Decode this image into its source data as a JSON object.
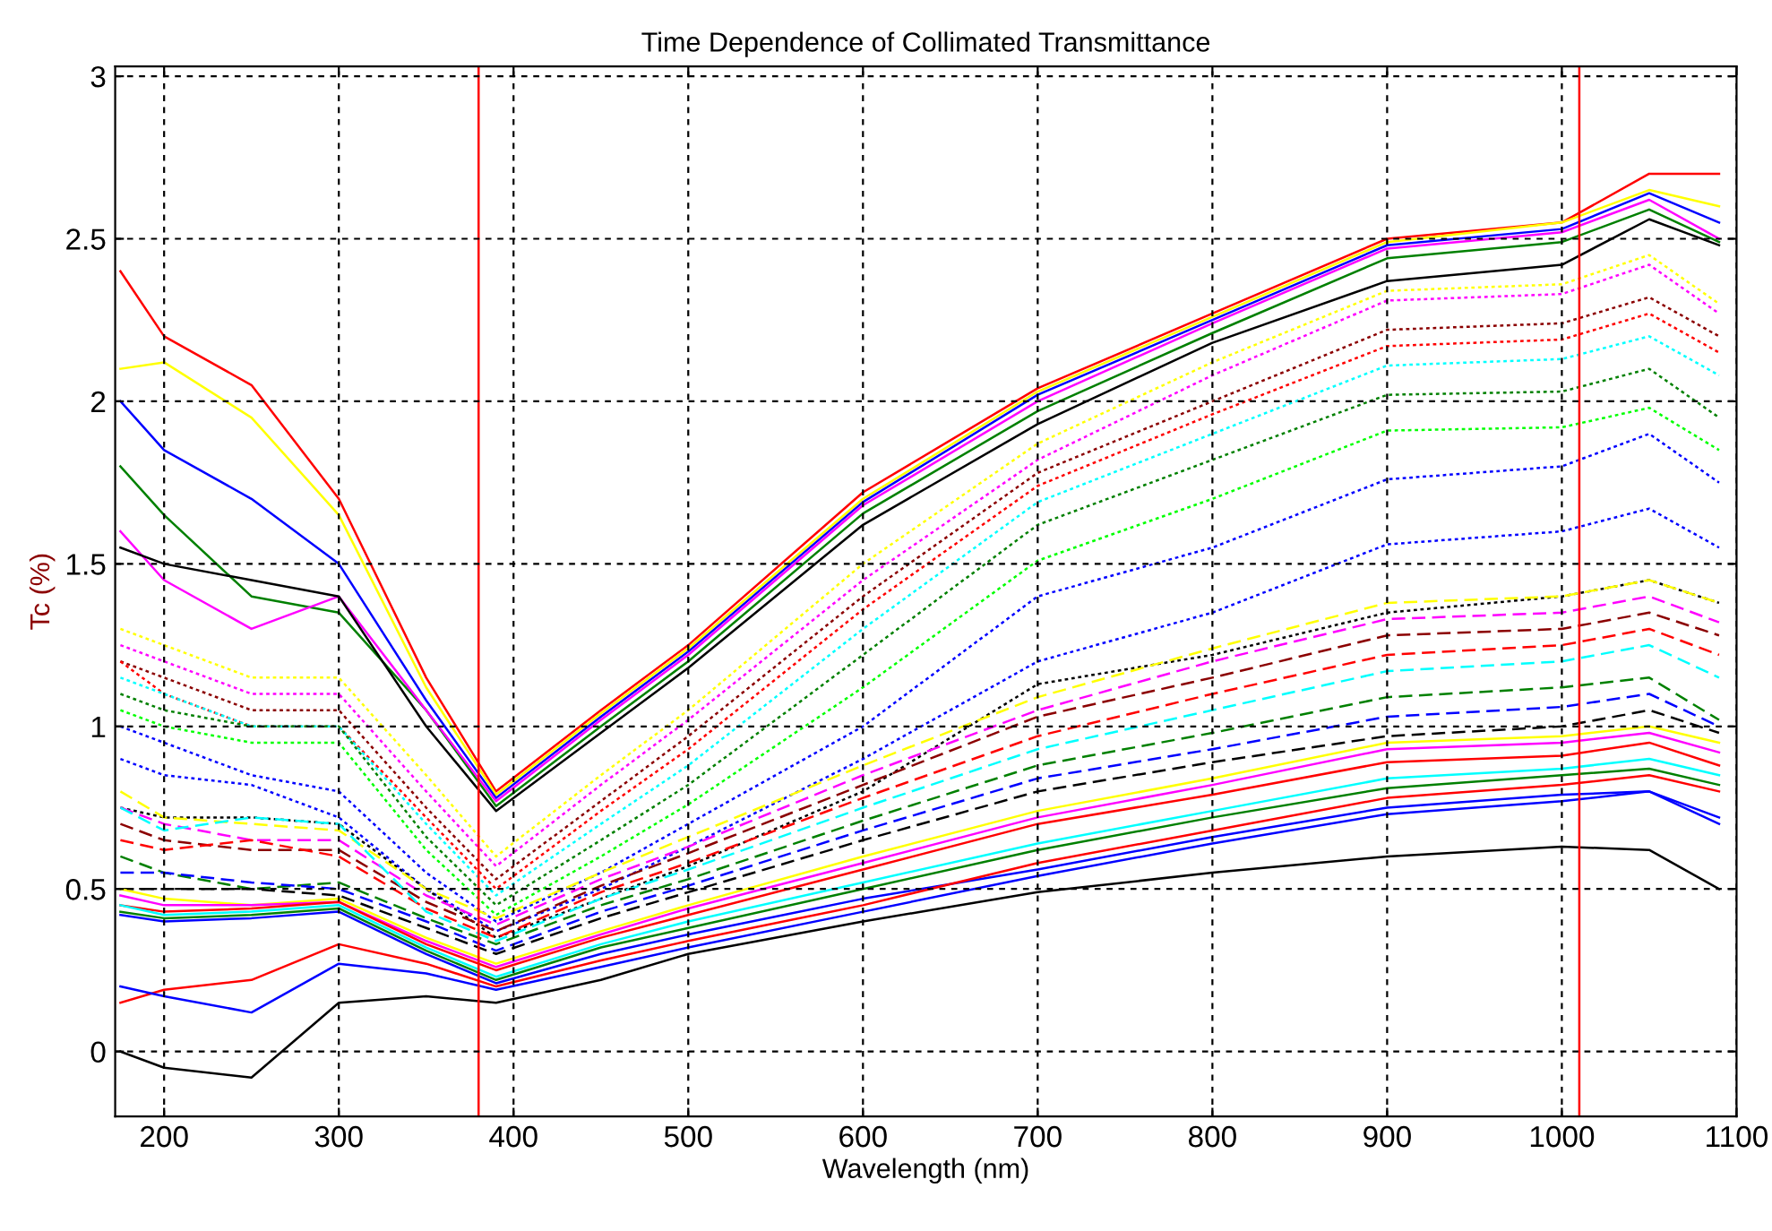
{
  "chart_data": {
    "type": "line",
    "title": "Time Dependence of Collimated Transmittance",
    "xlabel": "Wavelength (nm)",
    "ylabel": "Tc (%)",
    "x": [
      175,
      200,
      250,
      300,
      350,
      390,
      450,
      500,
      600,
      700,
      800,
      900,
      1000,
      1050,
      1090
    ],
    "xlim": [
      172,
      1100
    ],
    "ylim": [
      -0.2,
      3.03
    ],
    "xticks": [
      200,
      300,
      400,
      500,
      600,
      700,
      800,
      900,
      1000,
      1100
    ],
    "yticks": [
      0,
      0.5,
      1,
      1.5,
      2,
      2.5,
      3
    ],
    "grid": true,
    "legend": false,
    "ref_lines": [
      {
        "axis": "x",
        "value": 380,
        "color": "#ff0000"
      },
      {
        "axis": "x",
        "value": 1010,
        "color": "#ff0000"
      }
    ],
    "series": [
      {
        "color": "#ff0000",
        "line_style": "solid",
        "values": [
          2.4,
          2.2,
          2.05,
          1.7,
          1.15,
          0.8,
          1.05,
          1.25,
          1.72,
          2.04,
          2.27,
          2.5,
          2.55,
          2.7,
          2.7
        ]
      },
      {
        "color": "#ffff00",
        "line_style": "solid",
        "values": [
          2.1,
          2.12,
          1.95,
          1.65,
          1.12,
          0.79,
          1.04,
          1.24,
          1.7,
          2.03,
          2.26,
          2.49,
          2.55,
          2.65,
          2.6
        ]
      },
      {
        "color": "#0000ff",
        "line_style": "solid",
        "values": [
          2.0,
          1.85,
          1.7,
          1.5,
          1.08,
          0.78,
          1.03,
          1.23,
          1.69,
          2.02,
          2.25,
          2.48,
          2.53,
          2.64,
          2.55
        ]
      },
      {
        "color": "#008000",
        "line_style": "solid",
        "values": [
          1.8,
          1.65,
          1.4,
          1.35,
          1.05,
          0.755,
          1.0,
          1.2,
          1.655,
          1.97,
          2.21,
          2.44,
          2.49,
          2.59,
          2.49
        ]
      },
      {
        "color": "#ff00ff",
        "line_style": "solid",
        "values": [
          1.6,
          1.45,
          1.3,
          1.4,
          1.05,
          0.77,
          1.02,
          1.22,
          1.68,
          2.0,
          2.24,
          2.47,
          2.52,
          2.62,
          2.5
        ]
      },
      {
        "color": "#000000",
        "line_style": "solid",
        "values": [
          1.55,
          1.5,
          1.45,
          1.4,
          1.0,
          0.74,
          0.98,
          1.18,
          1.62,
          1.93,
          2.18,
          2.37,
          2.42,
          2.56,
          2.48
        ]
      },
      {
        "color": "#ffff00",
        "line_style": "dotted",
        "values": [
          1.3,
          1.25,
          1.15,
          1.15,
          0.85,
          0.6,
          0.85,
          1.05,
          1.5,
          1.87,
          2.12,
          2.34,
          2.36,
          2.45,
          2.3
        ]
      },
      {
        "color": "#ff00ff",
        "line_style": "dotted",
        "values": [
          1.25,
          1.2,
          1.1,
          1.1,
          0.8,
          0.57,
          0.82,
          1.02,
          1.45,
          1.82,
          2.08,
          2.31,
          2.33,
          2.42,
          2.27
        ]
      },
      {
        "color": "#8b0000",
        "line_style": "dotted",
        "values": [
          1.2,
          1.15,
          1.05,
          1.05,
          0.75,
          0.53,
          0.77,
          0.97,
          1.4,
          1.78,
          2.0,
          2.22,
          2.24,
          2.32,
          2.2
        ]
      },
      {
        "color": "#ff0000",
        "line_style": "dotted",
        "values": [
          1.2,
          1.1,
          1.0,
          1.0,
          0.72,
          0.5,
          0.74,
          0.93,
          1.36,
          1.74,
          1.96,
          2.17,
          2.19,
          2.27,
          2.15
        ]
      },
      {
        "color": "#00ffff",
        "line_style": "dotted",
        "values": [
          1.15,
          1.1,
          1.0,
          1.0,
          0.7,
          0.48,
          0.7,
          0.88,
          1.3,
          1.69,
          1.9,
          2.11,
          2.13,
          2.2,
          2.08
        ]
      },
      {
        "color": "#008000",
        "line_style": "dotted",
        "values": [
          1.1,
          1.05,
          1.0,
          1.0,
          0.66,
          0.45,
          0.65,
          0.82,
          1.22,
          1.62,
          1.82,
          2.02,
          2.03,
          2.1,
          1.95
        ]
      },
      {
        "color": "#00ff00",
        "line_style": "dotted",
        "values": [
          1.05,
          1.0,
          0.95,
          0.95,
          0.62,
          0.42,
          0.6,
          0.76,
          1.12,
          1.51,
          1.7,
          1.91,
          1.92,
          1.98,
          1.85
        ]
      },
      {
        "color": "#0000ff",
        "line_style": "dotted",
        "values": [
          1.0,
          0.95,
          0.85,
          0.8,
          0.55,
          0.4,
          0.55,
          0.7,
          1.0,
          1.4,
          1.55,
          1.76,
          1.8,
          1.9,
          1.75
        ]
      },
      {
        "color": "#0000ff",
        "line_style": "dotted",
        "values": [
          0.9,
          0.85,
          0.82,
          0.72,
          0.5,
          0.37,
          0.5,
          0.63,
          0.9,
          1.2,
          1.35,
          1.56,
          1.6,
          1.67,
          1.55
        ]
      },
      {
        "color": "#000000",
        "line_style": "dotted",
        "values": [
          0.75,
          0.72,
          0.72,
          0.7,
          0.5,
          0.35,
          0.47,
          0.57,
          0.8,
          1.13,
          1.22,
          1.35,
          1.4,
          1.45,
          1.38
        ]
      },
      {
        "color": "#ffff00",
        "line_style": "dashed",
        "values": [
          0.8,
          0.72,
          0.7,
          0.68,
          0.5,
          0.41,
          0.55,
          0.66,
          0.88,
          1.09,
          1.24,
          1.38,
          1.4,
          1.45,
          1.38
        ]
      },
      {
        "color": "#ff00ff",
        "line_style": "dashed",
        "values": [
          0.75,
          0.7,
          0.65,
          0.65,
          0.48,
          0.39,
          0.53,
          0.63,
          0.85,
          1.05,
          1.2,
          1.33,
          1.35,
          1.4,
          1.32
        ]
      },
      {
        "color": "#8b0000",
        "line_style": "dashed",
        "values": [
          0.7,
          0.65,
          0.62,
          0.62,
          0.46,
          0.37,
          0.51,
          0.61,
          0.82,
          1.03,
          1.15,
          1.28,
          1.3,
          1.35,
          1.28
        ]
      },
      {
        "color": "#ff0000",
        "line_style": "dashed",
        "values": [
          0.65,
          0.62,
          0.65,
          0.6,
          0.44,
          0.35,
          0.49,
          0.58,
          0.78,
          0.97,
          1.1,
          1.22,
          1.25,
          1.3,
          1.22
        ]
      },
      {
        "color": "#00ffff",
        "line_style": "dashed",
        "values": [
          0.75,
          0.68,
          0.72,
          0.7,
          0.43,
          0.34,
          0.47,
          0.56,
          0.75,
          0.93,
          1.05,
          1.17,
          1.2,
          1.25,
          1.15
        ]
      },
      {
        "color": "#008000",
        "line_style": "dashed",
        "values": [
          0.6,
          0.55,
          0.5,
          0.52,
          0.41,
          0.33,
          0.45,
          0.53,
          0.71,
          0.88,
          0.98,
          1.09,
          1.12,
          1.15,
          1.02
        ]
      },
      {
        "color": "#0000ff",
        "line_style": "dashed",
        "values": [
          0.55,
          0.55,
          0.52,
          0.5,
          0.4,
          0.31,
          0.43,
          0.51,
          0.68,
          0.84,
          0.93,
          1.03,
          1.06,
          1.1,
          1.0
        ]
      },
      {
        "color": "#000000",
        "line_style": "dashed",
        "values": [
          0.5,
          0.5,
          0.5,
          0.48,
          0.38,
          0.3,
          0.41,
          0.49,
          0.65,
          0.8,
          0.89,
          0.97,
          1.0,
          1.05,
          0.98
        ]
      },
      {
        "color": "#ffff00",
        "line_style": "solid",
        "values": [
          0.5,
          0.47,
          0.45,
          0.47,
          0.35,
          0.27,
          0.37,
          0.45,
          0.6,
          0.74,
          0.84,
          0.95,
          0.97,
          1.0,
          0.95
        ]
      },
      {
        "color": "#ff00ff",
        "line_style": "solid",
        "values": [
          0.48,
          0.45,
          0.45,
          0.46,
          0.34,
          0.26,
          0.36,
          0.44,
          0.58,
          0.72,
          0.82,
          0.93,
          0.95,
          0.98,
          0.92
        ]
      },
      {
        "color": "#ff0000",
        "line_style": "solid",
        "values": [
          0.45,
          0.43,
          0.44,
          0.46,
          0.33,
          0.25,
          0.35,
          0.42,
          0.56,
          0.7,
          0.79,
          0.89,
          0.91,
          0.95,
          0.88
        ]
      },
      {
        "color": "#00ffff",
        "line_style": "solid",
        "values": [
          0.45,
          0.42,
          0.43,
          0.45,
          0.32,
          0.23,
          0.33,
          0.4,
          0.52,
          0.64,
          0.74,
          0.84,
          0.87,
          0.9,
          0.85
        ]
      },
      {
        "color": "#008000",
        "line_style": "solid",
        "values": [
          0.43,
          0.41,
          0.42,
          0.44,
          0.31,
          0.22,
          0.32,
          0.38,
          0.5,
          0.62,
          0.72,
          0.81,
          0.85,
          0.87,
          0.82
        ]
      },
      {
        "color": "#0000ff",
        "line_style": "solid",
        "values": [
          0.42,
          0.4,
          0.41,
          0.43,
          0.3,
          0.21,
          0.3,
          0.36,
          0.47,
          0.56,
          0.66,
          0.75,
          0.79,
          0.8,
          0.72
        ]
      },
      {
        "color": "#ff0000",
        "line_style": "solid",
        "values": [
          0.15,
          0.19,
          0.22,
          0.33,
          0.27,
          0.2,
          0.28,
          0.34,
          0.45,
          0.58,
          0.68,
          0.78,
          0.82,
          0.85,
          0.8
        ]
      },
      {
        "color": "#0000ff",
        "line_style": "solid",
        "values": [
          0.2,
          0.17,
          0.12,
          0.27,
          0.24,
          0.19,
          0.26,
          0.32,
          0.43,
          0.54,
          0.64,
          0.73,
          0.77,
          0.8,
          0.7
        ]
      },
      {
        "color": "#000000",
        "line_style": "solid",
        "values": [
          0.0,
          -0.05,
          -0.08,
          0.15,
          0.17,
          0.15,
          0.22,
          0.3,
          0.4,
          0.49,
          0.55,
          0.6,
          0.63,
          0.62,
          0.5
        ]
      }
    ]
  }
}
